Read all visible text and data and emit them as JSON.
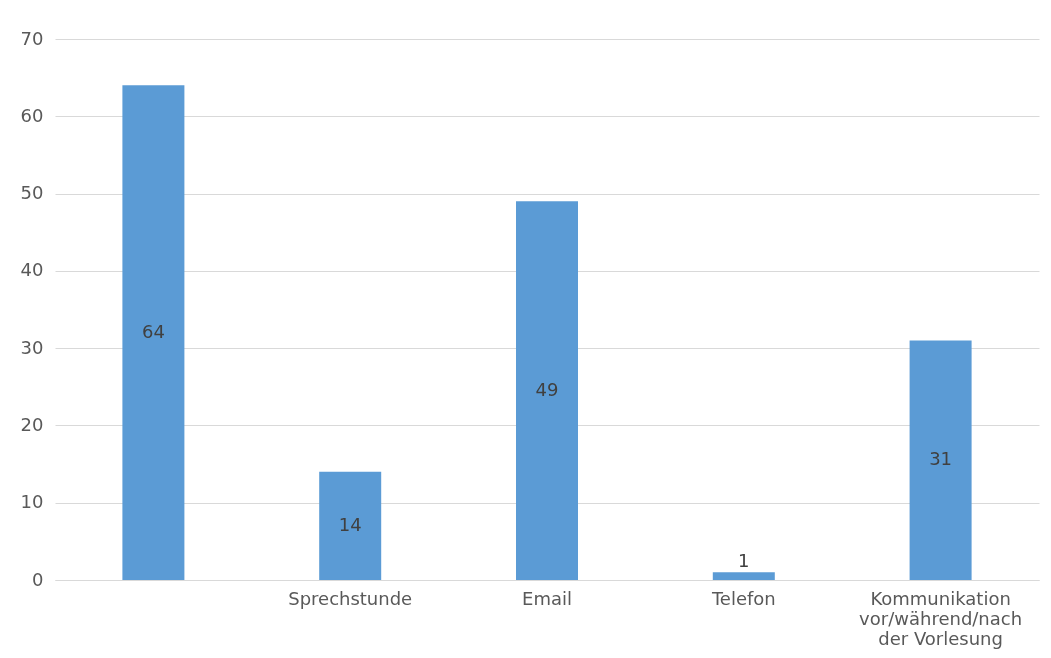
{
  "chart_data": {
    "type": "bar",
    "categories": [
      null,
      "Sprechstunde",
      "Email",
      "Telefon",
      "Kommunikation vor/während/nach der Vorlesung"
    ],
    "values": [
      64,
      14,
      49,
      1,
      31
    ],
    "color": "#5b9bd5",
    "ylim": [
      0,
      70
    ],
    "yticks": [
      0,
      10,
      20,
      30,
      40,
      50,
      60,
      70
    ],
    "grid": "y",
    "data_labels": true
  }
}
